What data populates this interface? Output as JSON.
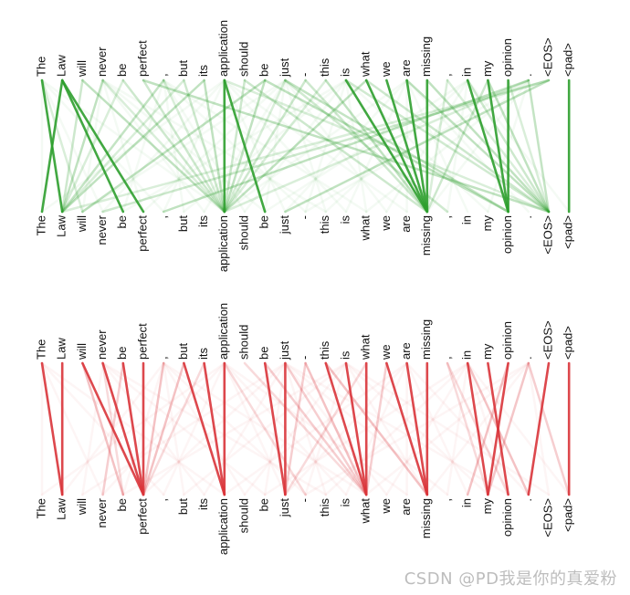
{
  "tokens": [
    "The",
    "Law",
    "will",
    "never",
    "be",
    "perfect",
    ",",
    "but",
    "its",
    "application",
    "should",
    "be",
    "just",
    "-",
    "this",
    "is",
    "what",
    "we",
    "are",
    "missing",
    ",",
    "in",
    "my",
    "opinion",
    ".",
    "<EOS>",
    "<pad>"
  ],
  "panels": [
    {
      "id": "top",
      "color": "#2e9e2e",
      "strong_links": [
        [
          0,
          1
        ],
        [
          1,
          0
        ],
        [
          1,
          4
        ],
        [
          1,
          5
        ],
        [
          9,
          9
        ],
        [
          9,
          11
        ],
        [
          15,
          19
        ],
        [
          16,
          19
        ],
        [
          17,
          19
        ],
        [
          18,
          19
        ],
        [
          19,
          19
        ],
        [
          21,
          23
        ],
        [
          22,
          23
        ],
        [
          23,
          23
        ],
        [
          26,
          26
        ]
      ],
      "faint_links": [
        [
          0,
          2
        ],
        [
          2,
          1
        ],
        [
          3,
          1
        ],
        [
          4,
          1
        ],
        [
          5,
          9
        ],
        [
          5,
          25
        ],
        [
          6,
          9
        ],
        [
          7,
          9
        ],
        [
          8,
          9
        ],
        [
          9,
          25
        ],
        [
          10,
          9
        ],
        [
          11,
          9
        ],
        [
          12,
          9
        ],
        [
          13,
          19
        ],
        [
          14,
          19
        ],
        [
          15,
          25
        ],
        [
          16,
          25
        ],
        [
          18,
          25
        ],
        [
          20,
          19
        ],
        [
          21,
          25
        ],
        [
          22,
          25
        ],
        [
          23,
          25
        ],
        [
          24,
          25
        ],
        [
          24,
          6
        ],
        [
          25,
          1
        ],
        [
          25,
          3
        ],
        [
          25,
          12
        ],
        [
          24,
          9
        ],
        [
          13,
          9
        ],
        [
          11,
          2
        ],
        [
          12,
          20
        ],
        [
          10,
          19
        ],
        [
          8,
          1
        ],
        [
          7,
          1
        ],
        [
          6,
          1
        ],
        [
          2,
          9
        ],
        [
          3,
          9
        ],
        [
          4,
          9
        ],
        [
          19,
          25
        ],
        [
          20,
          25
        ],
        [
          22,
          19
        ],
        [
          16,
          9
        ],
        [
          14,
          9
        ],
        [
          12,
          23
        ],
        [
          11,
          23
        ]
      ]
    },
    {
      "id": "bottom",
      "color": "#d9343a",
      "strong_links": [
        [
          0,
          1
        ],
        [
          1,
          1
        ],
        [
          2,
          5
        ],
        [
          3,
          5
        ],
        [
          4,
          5
        ],
        [
          5,
          5
        ],
        [
          7,
          9
        ],
        [
          8,
          9
        ],
        [
          9,
          9
        ],
        [
          11,
          12
        ],
        [
          12,
          12
        ],
        [
          14,
          16
        ],
        [
          15,
          16
        ],
        [
          16,
          16
        ],
        [
          17,
          19
        ],
        [
          18,
          19
        ],
        [
          19,
          19
        ],
        [
          21,
          22
        ],
        [
          22,
          23
        ],
        [
          23,
          22
        ],
        [
          25,
          24
        ],
        [
          26,
          26
        ]
      ],
      "faint_links": [
        [
          10,
          16
        ],
        [
          11,
          16
        ],
        [
          13,
          16
        ],
        [
          20,
          22
        ],
        [
          24,
          26
        ],
        [
          7,
          5
        ],
        [
          8,
          5
        ],
        [
          13,
          12
        ],
        [
          14,
          19
        ],
        [
          20,
          23
        ],
        [
          24,
          22
        ],
        [
          23,
          21
        ],
        [
          3,
          4
        ],
        [
          4,
          3
        ],
        [
          2,
          4
        ],
        [
          16,
          12
        ],
        [
          12,
          16
        ],
        [
          6,
          5
        ],
        [
          9,
          13
        ],
        [
          17,
          16
        ],
        [
          21,
          24
        ]
      ]
    }
  ],
  "watermark": "CSDN @PD我是你的真爱粉"
}
